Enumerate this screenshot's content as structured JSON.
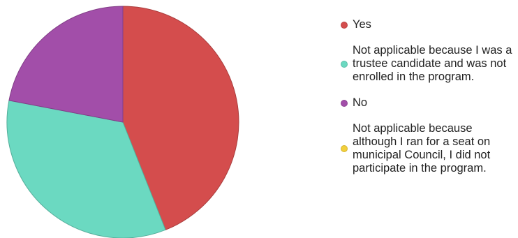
{
  "chart_data": {
    "type": "pie",
    "title": "",
    "slices": [
      {
        "label": "Yes",
        "value": 44,
        "color": "#d44d4d"
      },
      {
        "label": "Not applicable because I was a trustee candidate and was not enrolled in the program.",
        "value": 34,
        "color": "#6bd9c1"
      },
      {
        "label": "No",
        "value": 22,
        "color": "#a24ea9"
      },
      {
        "label": "Not applicable because although I ran for a seat on municipal Council, I did not participate in the program.",
        "value": 0,
        "color": "#f2cf3b"
      }
    ],
    "legend_position": "right",
    "start_angle": "top",
    "direction": "clockwise"
  }
}
